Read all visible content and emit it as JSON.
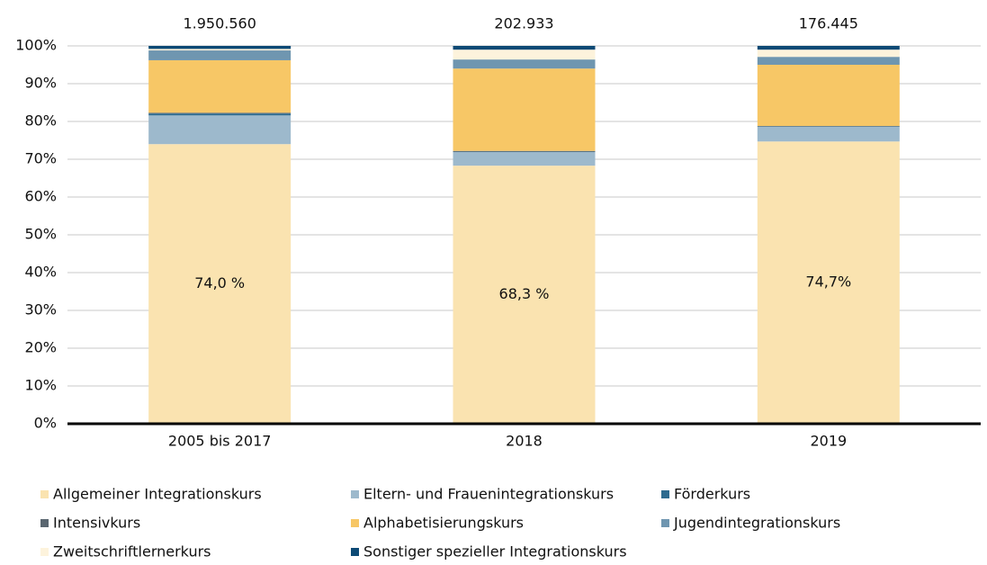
{
  "chart_data": {
    "type": "stacked_bar",
    "categories": [
      "2005 bis 2017",
      "2018",
      "2019"
    ],
    "series": [
      {
        "name": "Allgemeiner Integrationskurs",
        "color": "#fae3b0",
        "values": [
          74.0,
          68.3,
          74.7
        ],
        "value_labels": [
          "74,0 %",
          "68,3 %",
          "74,7%"
        ]
      },
      {
        "name": "Eltern- und Frauenintegrationskurs",
        "color": "#9db9cc",
        "values": [
          7.6,
          3.6,
          3.9
        ]
      },
      {
        "name": "Förderkurs",
        "color": "#2e6b8f",
        "values": [
          0.5,
          0.1,
          0.1
        ]
      },
      {
        "name": "Intensivkurs",
        "color": "#5a6670",
        "values": [
          0.2,
          0.2,
          0.1
        ]
      },
      {
        "name": "Alphabetisierungskurs",
        "color": "#f7c766",
        "values": [
          13.9,
          21.8,
          16.2
        ]
      },
      {
        "name": "Jugendintegrationskurs",
        "color": "#6f96b0",
        "values": [
          2.6,
          2.4,
          2.1
        ]
      },
      {
        "name": "Zweitschriftlernerkurs",
        "color": "#fdf3dc",
        "values": [
          0.4,
          2.6,
          1.9
        ]
      },
      {
        "name": "Sonstiger spezieller Integrationskurs",
        "color": "#0d4a75",
        "values": [
          0.8,
          1.0,
          1.0
        ]
      }
    ],
    "totals": {
      "values": [
        1950560,
        202933,
        176445
      ],
      "value_labels": [
        "1.950.560",
        "202.933",
        "176.445"
      ]
    },
    "ylim": [
      0,
      100
    ],
    "yticks": [
      {
        "value": 0,
        "label": "0%"
      },
      {
        "value": 10,
        "label": "10%"
      },
      {
        "value": 20,
        "label": "20%"
      },
      {
        "value": 30,
        "label": "30%"
      },
      {
        "value": 40,
        "label": "40%"
      },
      {
        "value": 50,
        "label": "50%"
      },
      {
        "value": 60,
        "label": "60%"
      },
      {
        "value": 70,
        "label": "70%"
      },
      {
        "value": 80,
        "label": "80%"
      },
      {
        "value": 90,
        "label": "90%"
      },
      {
        "value": 100,
        "label": "100%"
      }
    ],
    "grid": true
  }
}
